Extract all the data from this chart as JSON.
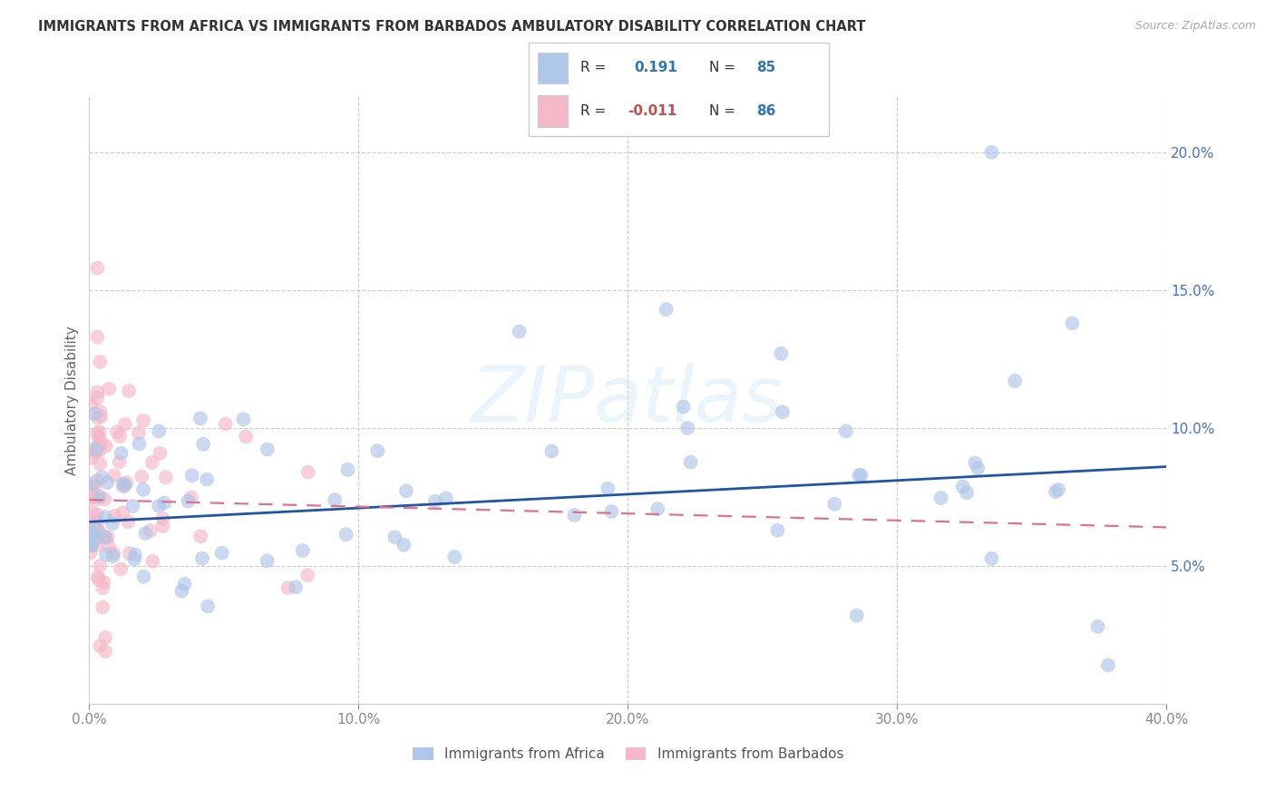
{
  "title": "IMMIGRANTS FROM AFRICA VS IMMIGRANTS FROM BARBADOS AMBULATORY DISABILITY CORRELATION CHART",
  "source": "Source: ZipAtlas.com",
  "ylabel": "Ambulatory Disability",
  "xlim": [
    0.0,
    0.4
  ],
  "ylim": [
    0.0,
    0.22
  ],
  "yticks": [
    0.05,
    0.1,
    0.15,
    0.2
  ],
  "xticks": [
    0.0,
    0.1,
    0.2,
    0.3,
    0.4
  ],
  "legend_r_africa": "0.191",
  "legend_n_africa": "85",
  "legend_r_barbados": "-0.011",
  "legend_n_barbados": "86",
  "color_africa": "#aec6e8",
  "color_barbados": "#f4b8c8",
  "line_color_africa": "#2055a4",
  "line_color_barbados": "#e07090",
  "watermark": "ZIPatlas",
  "r_africa_label_color": "#2e75b6",
  "r_barbados_label_color": "#c0504d",
  "n_color": "#2e75b6",
  "africa_line_y0": 0.066,
  "africa_line_y1": 0.086,
  "barbados_line_y0": 0.074,
  "barbados_line_y1": 0.064
}
